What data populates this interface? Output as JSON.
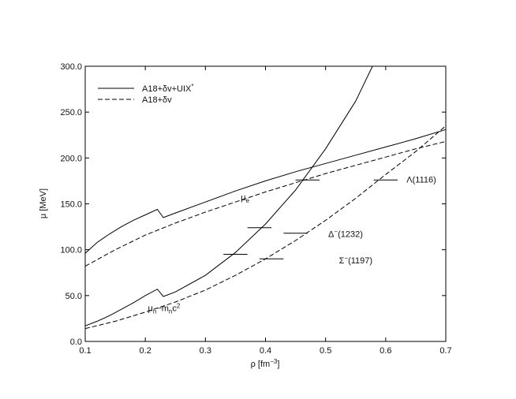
{
  "chart_data": {
    "type": "line",
    "xlabel": {
      "main": "ρ",
      "unit_open": " [fm",
      "unit_sup": "−3",
      "unit_close": "]"
    },
    "ylabel": "μ [MeV]",
    "xlim": [
      0.1,
      0.7
    ],
    "ylim": [
      0.0,
      300.0
    ],
    "x_ticks": [
      0.1,
      0.2,
      0.3,
      0.4,
      0.5,
      0.6,
      0.7
    ],
    "y_ticks": [
      0.0,
      50.0,
      100.0,
      150.0,
      200.0,
      250.0,
      300.0
    ],
    "x_tick_labels": [
      "0.1",
      "0.2",
      "0.3",
      "0.4",
      "0.5",
      "0.6",
      "0.7"
    ],
    "y_tick_labels": [
      "0.0",
      "50.0",
      "100.0",
      "150.0",
      "200.0",
      "250.0",
      "300.0"
    ],
    "grid": false,
    "legend": {
      "placement": "top-left",
      "entries": [
        {
          "style": "solid",
          "main": "A18+δv+UIX",
          "sup": "*"
        },
        {
          "style": "dashed",
          "main": "A18+δv",
          "sup": ""
        }
      ]
    },
    "series": [
      {
        "style": "solid",
        "x": [
          0.1,
          0.12,
          0.14,
          0.16,
          0.18,
          0.2,
          0.22,
          0.23,
          0.25,
          0.3,
          0.35,
          0.4,
          0.45,
          0.5,
          0.55,
          0.6,
          0.65,
          0.7
        ],
        "y": [
          96,
          108,
          117,
          125,
          132,
          138,
          144,
          135,
          140,
          152,
          164,
          175,
          185,
          194,
          203,
          212,
          221,
          231
        ]
      },
      {
        "style": "dashed",
        "x": [
          0.1,
          0.15,
          0.2,
          0.25,
          0.3,
          0.35,
          0.4,
          0.45,
          0.5,
          0.55,
          0.6,
          0.65,
          0.7
        ],
        "y": [
          82,
          100,
          116,
          129,
          141,
          152,
          163,
          173,
          183,
          192,
          201,
          210,
          218
        ]
      },
      {
        "style": "solid",
        "x": [
          0.1,
          0.12,
          0.14,
          0.16,
          0.18,
          0.2,
          0.22,
          0.23,
          0.25,
          0.3,
          0.35,
          0.4,
          0.45,
          0.5,
          0.55,
          0.578
        ],
        "y": [
          17,
          22,
          28,
          35,
          42,
          50,
          57,
          49,
          54,
          72,
          97,
          128,
          165,
          210,
          262,
          300
        ]
      },
      {
        "style": "dashed",
        "x": [
          0.1,
          0.15,
          0.2,
          0.25,
          0.3,
          0.35,
          0.4,
          0.45,
          0.5,
          0.55,
          0.6,
          0.65,
          0.7
        ],
        "y": [
          14,
          22,
          32,
          43,
          56,
          72,
          90,
          110,
          132,
          156,
          182,
          207,
          235
        ]
      }
    ],
    "thresholds": [
      {
        "x0": 0.33,
        "x1": 0.37,
        "y": 95
      },
      {
        "x0": 0.37,
        "x1": 0.41,
        "y": 124
      },
      {
        "x0": 0.39,
        "x1": 0.43,
        "y": 90
      },
      {
        "x0": 0.43,
        "x1": 0.47,
        "y": 118
      },
      {
        "x0": 0.45,
        "x1": 0.49,
        "y": 176
      },
      {
        "x0": 0.58,
        "x1": 0.62,
        "y": 176
      }
    ],
    "annotations": [
      {
        "x": 0.373,
        "y": 154,
        "main": "μ",
        "sub": "e",
        "rest": ""
      },
      {
        "x": 0.258,
        "y": 33,
        "main": "μ",
        "sub": "n",
        "rest": "−m",
        "sub2": "n",
        "rest2": "c",
        "sup2": "2"
      },
      {
        "x": 0.578,
        "y": 85,
        "main": "Σ",
        "sup": "−",
        "rest": "(1197)"
      },
      {
        "x": 0.562,
        "y": 114,
        "main": "Δ",
        "sup": "−",
        "rest": "(1232)"
      },
      {
        "x": 0.684,
        "y": 173,
        "main": "Λ(1116)"
      }
    ]
  }
}
